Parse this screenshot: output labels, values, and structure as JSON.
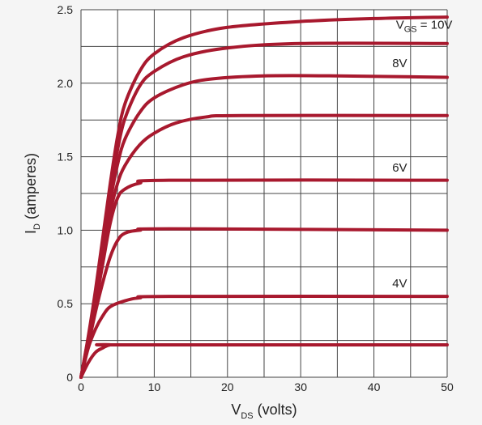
{
  "chart_data": {
    "type": "line",
    "title": "",
    "xlabel": {
      "main": "V",
      "sub": "DS",
      "rest": " (volts)"
    },
    "ylabel": {
      "main": "I",
      "sub": "D",
      "rest": " (amperes)"
    },
    "xlim": [
      0,
      50
    ],
    "ylim": [
      0,
      2.5
    ],
    "grid": true,
    "x_ticks": [
      "0",
      "10",
      "20",
      "30",
      "40",
      "50"
    ],
    "y_ticks": [
      "0",
      "0.5",
      "1.0",
      "1.5",
      "2.0",
      "2.5"
    ],
    "x_tick_values": [
      0,
      10,
      20,
      30,
      40,
      50
    ],
    "y_tick_values": [
      0,
      0.5,
      1.0,
      1.5,
      2.0,
      2.5
    ],
    "x_grid_step": 5,
    "y_grid_step": 0.25,
    "line_color": "#a8192e",
    "series": [
      {
        "points": [
          [
            0,
            0
          ],
          [
            1,
            0.1
          ],
          [
            2,
            0.17
          ],
          [
            3,
            0.2
          ],
          [
            4,
            0.22
          ],
          [
            6,
            0.22
          ],
          [
            50,
            0.22
          ]
        ]
      },
      {
        "points": [
          [
            0,
            0
          ],
          [
            1,
            0.2
          ],
          [
            2,
            0.33
          ],
          [
            3,
            0.42
          ],
          [
            4,
            0.48
          ],
          [
            6,
            0.52
          ],
          [
            8,
            0.54
          ],
          [
            12,
            0.55
          ],
          [
            50,
            0.55
          ]
        ]
      },
      {
        "points": [
          [
            0,
            0
          ],
          [
            1,
            0.22
          ],
          [
            2,
            0.45
          ],
          [
            3,
            0.65
          ],
          [
            4,
            0.82
          ],
          [
            5,
            0.93
          ],
          [
            6,
            0.98
          ],
          [
            8,
            1.0
          ],
          [
            12,
            1.01
          ],
          [
            50,
            1.0
          ]
        ]
      },
      {
        "points": [
          [
            0,
            0
          ],
          [
            1,
            0.24
          ],
          [
            2,
            0.5
          ],
          [
            3,
            0.78
          ],
          [
            4,
            1.05
          ],
          [
            5,
            1.22
          ],
          [
            6,
            1.28
          ],
          [
            8,
            1.32
          ],
          [
            12,
            1.34
          ],
          [
            50,
            1.34
          ]
        ]
      },
      {
        "points": [
          [
            0,
            0
          ],
          [
            1,
            0.25
          ],
          [
            2,
            0.52
          ],
          [
            3,
            0.82
          ],
          [
            4,
            1.12
          ],
          [
            5,
            1.32
          ],
          [
            6,
            1.44
          ],
          [
            8,
            1.58
          ],
          [
            10,
            1.66
          ],
          [
            13,
            1.73
          ],
          [
            17,
            1.77
          ],
          [
            22,
            1.78
          ],
          [
            50,
            1.78
          ]
        ]
      },
      {
        "points": [
          [
            0,
            0
          ],
          [
            1,
            0.26
          ],
          [
            2,
            0.55
          ],
          [
            3,
            0.88
          ],
          [
            4,
            1.2
          ],
          [
            5,
            1.45
          ],
          [
            6,
            1.62
          ],
          [
            8,
            1.8
          ],
          [
            10,
            1.9
          ],
          [
            14,
            1.99
          ],
          [
            18,
            2.03
          ],
          [
            25,
            2.05
          ],
          [
            35,
            2.05
          ],
          [
            50,
            2.04
          ]
        ]
      },
      {
        "points": [
          [
            0,
            0
          ],
          [
            1,
            0.27
          ],
          [
            2,
            0.57
          ],
          [
            3,
            0.92
          ],
          [
            4,
            1.26
          ],
          [
            5,
            1.55
          ],
          [
            6,
            1.76
          ],
          [
            8,
            1.98
          ],
          [
            10,
            2.08
          ],
          [
            14,
            2.18
          ],
          [
            20,
            2.24
          ],
          [
            30,
            2.27
          ],
          [
            50,
            2.27
          ]
        ]
      },
      {
        "points": [
          [
            0,
            0
          ],
          [
            1,
            0.28
          ],
          [
            2,
            0.6
          ],
          [
            3,
            0.96
          ],
          [
            4,
            1.32
          ],
          [
            5,
            1.64
          ],
          [
            6,
            1.86
          ],
          [
            8,
            2.08
          ],
          [
            10,
            2.2
          ],
          [
            14,
            2.31
          ],
          [
            20,
            2.38
          ],
          [
            30,
            2.42
          ],
          [
            40,
            2.44
          ],
          [
            50,
            2.45
          ]
        ]
      }
    ],
    "annotations": [
      {
        "main": "V",
        "sub": "GS",
        "rest": " = 10V",
        "x": 43,
        "y": 2.37
      },
      {
        "main": "8V",
        "sub": "",
        "rest": "",
        "x": 42.5,
        "y": 2.11
      },
      {
        "main": "6V",
        "sub": "",
        "rest": "",
        "x": 42.5,
        "y": 1.4
      },
      {
        "main": "4V",
        "sub": "",
        "rest": "",
        "x": 42.5,
        "y": 0.61
      }
    ]
  }
}
